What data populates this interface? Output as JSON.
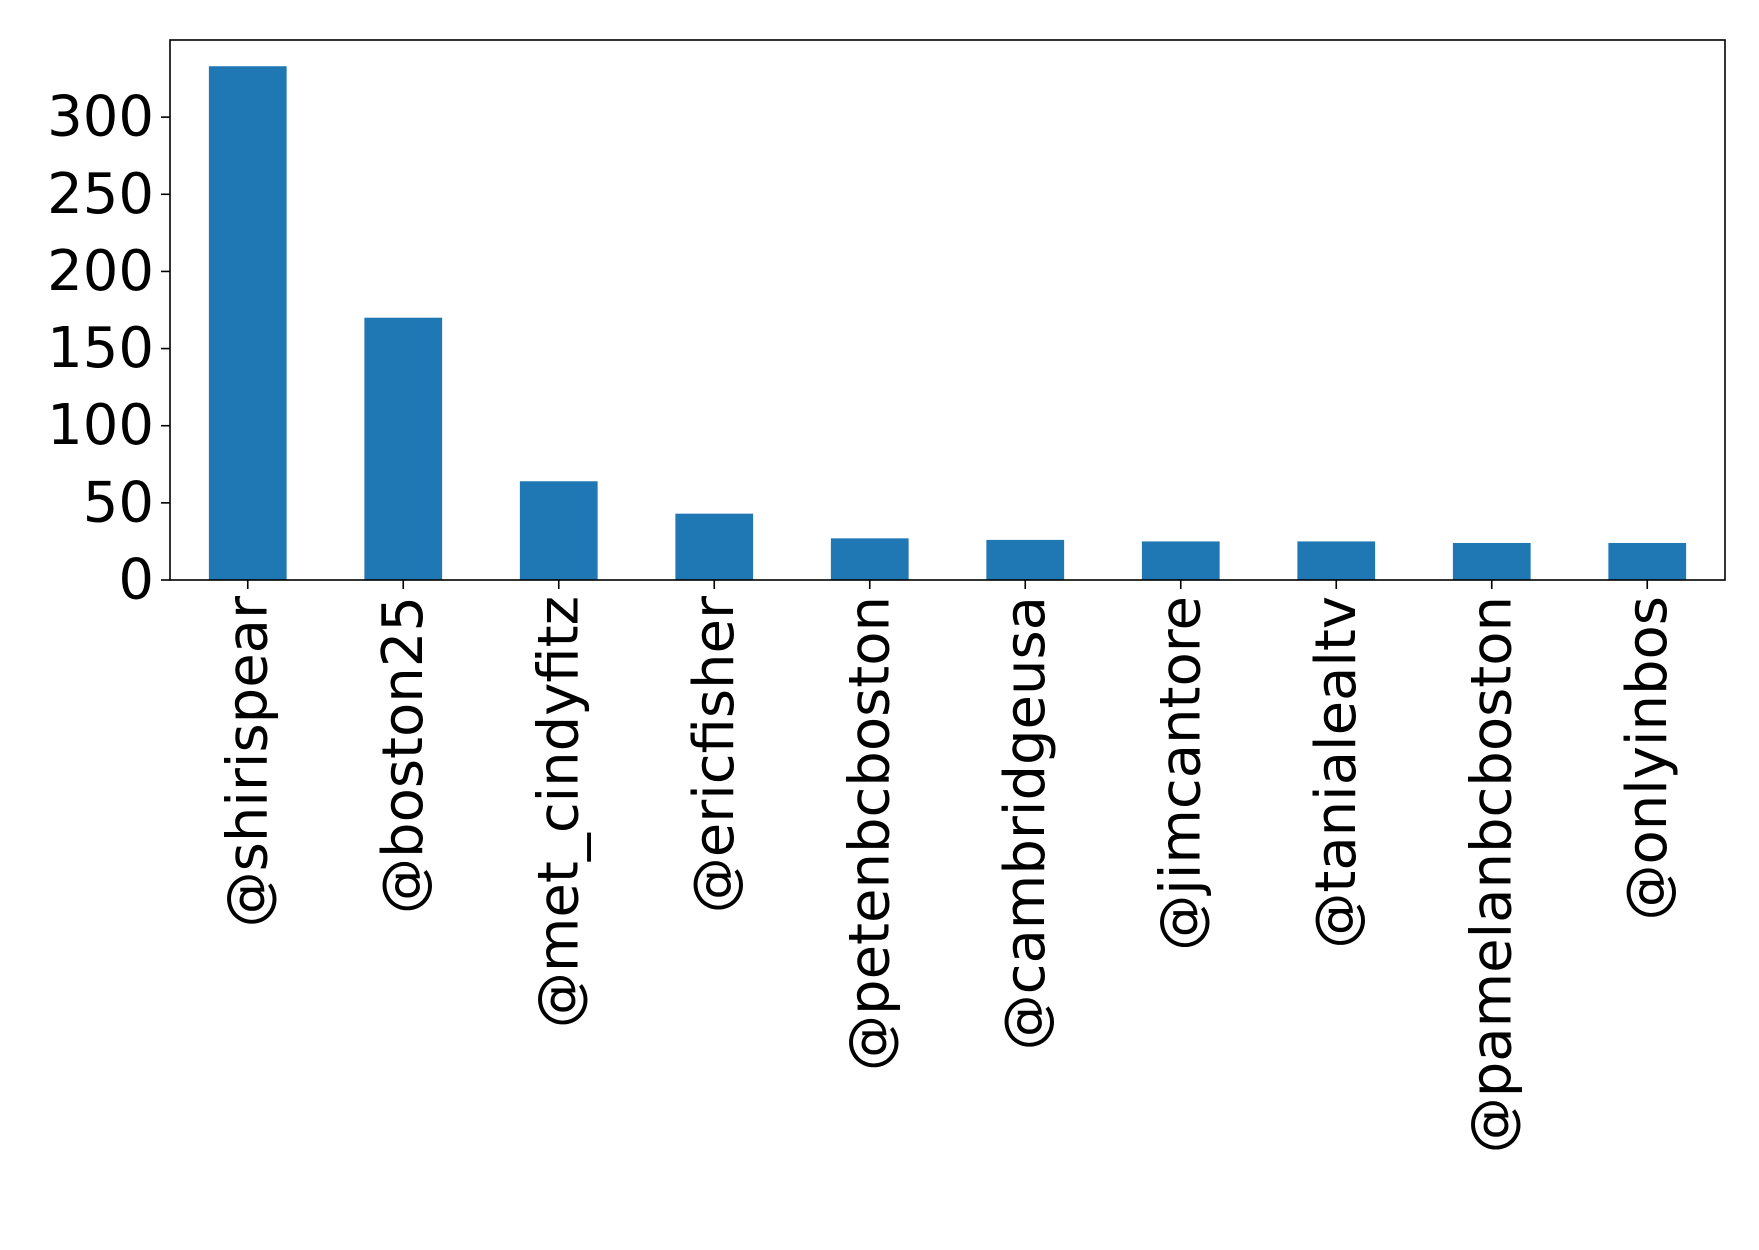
{
  "chart_data": {
    "type": "bar",
    "title": "",
    "xlabel": "",
    "ylabel": "",
    "categories": [
      "@shirispear",
      "@boston25",
      "@met_cindyfitz",
      "@ericfisher",
      "@petenbcboston",
      "@cambridgeusa",
      "@jimcantore",
      "@tanialealtv",
      "@pamelanbcboston",
      "@onlyinbos"
    ],
    "values": [
      333,
      170,
      64,
      43,
      27,
      26,
      25,
      25,
      24,
      24
    ],
    "ylim": [
      0,
      350
    ],
    "yticks": [
      0,
      50,
      100,
      150,
      200,
      250,
      300
    ],
    "bar_color": "#1f77b4",
    "grid": false,
    "legend": "none"
  }
}
